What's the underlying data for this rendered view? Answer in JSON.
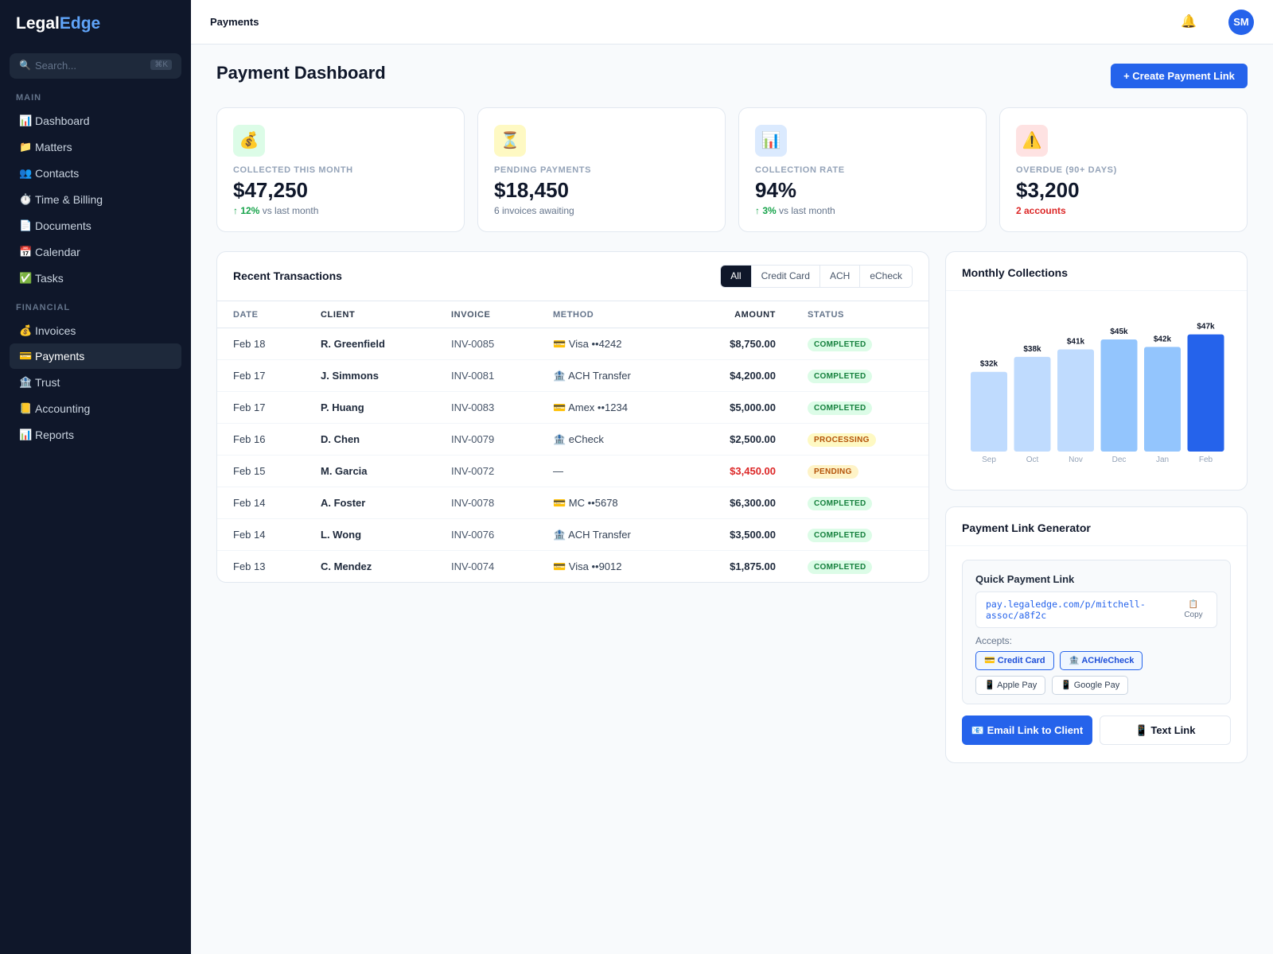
{
  "app": {
    "logo_part1": "Legal",
    "logo_part2": "Edge"
  },
  "sidebar": {
    "search": {
      "icon": "🔍",
      "placeholder": "Search...",
      "shortcut": "⌘K"
    },
    "sections": [
      {
        "label": "MAIN"
      },
      {
        "label": "FINANCIAL"
      }
    ],
    "items": [
      {
        "icon": "📊",
        "label": "Dashboard",
        "active": false
      },
      {
        "icon": "📁",
        "label": "Matters",
        "active": false
      },
      {
        "icon": "👥",
        "label": "Contacts",
        "active": false
      },
      {
        "icon": "⏱️",
        "label": "Time & Billing",
        "active": false
      },
      {
        "icon": "📄",
        "label": "Documents",
        "active": false
      },
      {
        "icon": "📅",
        "label": "Calendar",
        "active": false
      },
      {
        "icon": "✅",
        "label": "Tasks",
        "active": false
      },
      {
        "icon": "💰",
        "label": "Invoices",
        "active": false
      },
      {
        "icon": "💳",
        "label": "Payments",
        "active": true
      },
      {
        "icon": "🏦",
        "label": "Trust",
        "active": false
      },
      {
        "icon": "📒",
        "label": "Accounting",
        "active": false
      },
      {
        "icon": "📊",
        "label": "Reports",
        "active": false
      }
    ]
  },
  "topbar": {
    "breadcrumb": "Payments",
    "bell_icon": "🔔",
    "avatar_initials": "SM"
  },
  "page": {
    "title": "Payment Dashboard",
    "create_button": "+ Create Payment Link"
  },
  "stats": [
    {
      "icon": "💰",
      "icon_bg": "#dcfce7",
      "label": "COLLECTED THIS MONTH",
      "value": "$47,250",
      "delta": "↑ 12%",
      "sub": " vs last month"
    },
    {
      "icon": "⏳",
      "icon_bg": "#fef9c3",
      "label": "PENDING PAYMENTS",
      "value": "$18,450",
      "sub": "6 invoices awaiting"
    },
    {
      "icon": "📊",
      "icon_bg": "#dbeafe",
      "label": "COLLECTION RATE",
      "value": "94%",
      "delta": "↑ 3%",
      "sub": " vs last month"
    },
    {
      "icon": "⚠️",
      "icon_bg": "#fee2e2",
      "label": "OVERDUE (90+ DAYS)",
      "value": "$3,200",
      "sub": "2 accounts"
    }
  ],
  "transactions": {
    "title": "Recent Transactions",
    "filters": [
      {
        "label": "All",
        "active": true
      },
      {
        "label": "Credit Card",
        "active": false
      },
      {
        "label": "ACH",
        "active": false
      },
      {
        "label": "eCheck",
        "active": false
      }
    ],
    "columns": [
      "DATE",
      "CLIENT",
      "INVOICE",
      "METHOD",
      "AMOUNT",
      "STATUS"
    ],
    "rows": [
      {
        "date": "Feb 18",
        "client": "R. Greenfield",
        "invoice": "INV-0085",
        "method": "💳 Visa ••4242",
        "amount": "$8,750.00",
        "status": "COMPLETED"
      },
      {
        "date": "Feb 17",
        "client": "J. Simmons",
        "invoice": "INV-0081",
        "method": "🏦 ACH Transfer",
        "amount": "$4,200.00",
        "status": "COMPLETED"
      },
      {
        "date": "Feb 17",
        "client": "P. Huang",
        "invoice": "INV-0083",
        "method": "💳 Amex ••1234",
        "amount": "$5,000.00",
        "status": "COMPLETED"
      },
      {
        "date": "Feb 16",
        "client": "D. Chen",
        "invoice": "INV-0079",
        "method": "🏦 eCheck",
        "amount": "$2,500.00",
        "status": "PROCESSING"
      },
      {
        "date": "Feb 15",
        "client": "M. Garcia",
        "invoice": "INV-0072",
        "method": "—",
        "amount": "$3,450.00",
        "status": "PENDING",
        "amount_color": "#dc2626"
      },
      {
        "date": "Feb 14",
        "client": "A. Foster",
        "invoice": "INV-0078",
        "method": "💳 MC ••5678",
        "amount": "$6,300.00",
        "status": "COMPLETED"
      },
      {
        "date": "Feb 14",
        "client": "L. Wong",
        "invoice": "INV-0076",
        "method": "🏦 ACH Transfer",
        "amount": "$3,500.00",
        "status": "COMPLETED"
      },
      {
        "date": "Feb 13",
        "client": "C. Mendez",
        "invoice": "INV-0074",
        "method": "💳 Visa ••9012",
        "amount": "$1,875.00",
        "status": "COMPLETED"
      }
    ]
  },
  "monthly_chart": {
    "title": "Monthly Collections"
  },
  "chart_data": {
    "type": "bar",
    "title": "Monthly Collections",
    "categories": [
      "Sep",
      "Oct",
      "Nov",
      "Dec",
      "Jan",
      "Feb"
    ],
    "values": [
      32,
      38,
      41,
      45,
      42,
      47
    ],
    "value_labels": [
      "$32k",
      "$38k",
      "$41k",
      "$45k",
      "$42k",
      "$47k"
    ],
    "unit": "k",
    "ylim": [
      0,
      52
    ],
    "grid": false,
    "colors": [
      "#bfdbfe",
      "#bfdbfe",
      "#bfdbfe",
      "#93c5fd",
      "#93c5fd",
      "#2563eb"
    ]
  },
  "link_generator": {
    "title": "Payment Link Generator",
    "quick_title": "Quick Payment Link",
    "url": "pay.legaledge.com/p/mitchell-assoc/a8f2c",
    "copy_icon": "📋",
    "copy_label": "Copy",
    "accepts_label": "Accepts:",
    "methods": [
      {
        "label": "💳 Credit Card",
        "selected": true
      },
      {
        "label": "🏦 ACH/eCheck",
        "selected": true
      },
      {
        "label": "📱 Apple Pay",
        "selected": false
      },
      {
        "label": "📱 Google Pay",
        "selected": false
      }
    ],
    "email_button": "📧 Email Link to Client",
    "text_button": "📱 Text Link"
  }
}
